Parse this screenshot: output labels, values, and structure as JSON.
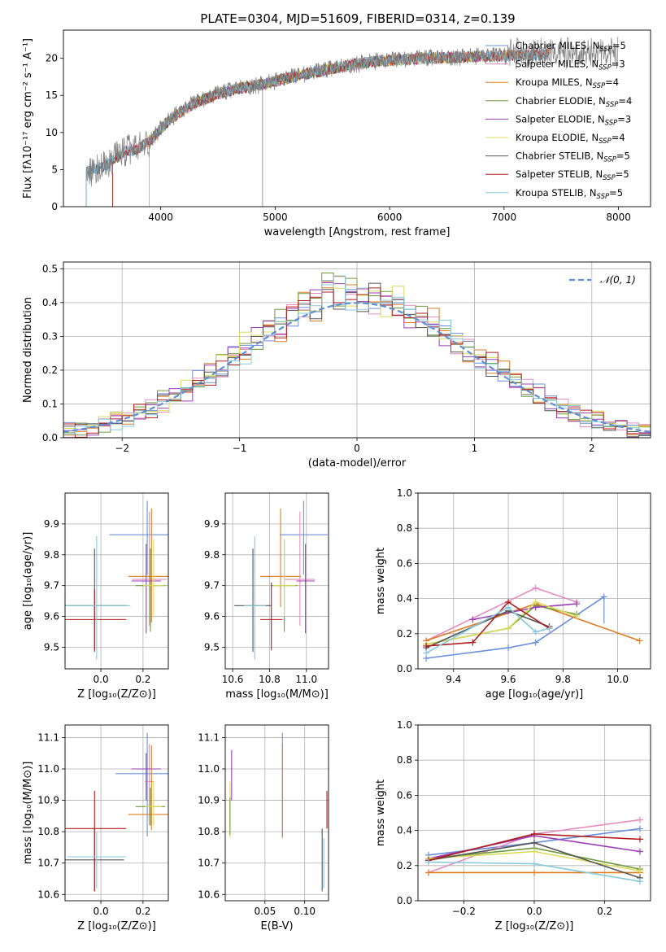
{
  "figure": {
    "title": "PLATE=0304, MJD=51609, FIBERID=0314, z=0.139"
  },
  "colors": {
    "chabrier_miles": "#6a8fdc",
    "salpeter_miles": "#e68bbf",
    "kroupa_miles": "#e07b22",
    "chabrier_elodie": "#6f9a3c",
    "salpeter_elodie": "#9b3fb5",
    "kroupa_elodie": "#d8dc5a",
    "chabrier_stelib": "#555555",
    "salpeter_stelib": "#b01e1e",
    "kroupa_stelib": "#86c9dc",
    "data_spectrum": "#808080",
    "normal_curve": "#5b8fd6"
  },
  "chart_data": [
    {
      "id": "spectrum",
      "type": "line",
      "title": "PLATE=0304, MJD=51609, FIBERID=0314, z=0.139",
      "xlabel": "wavelength [Angstrom, rest frame]",
      "ylabel": "Flux [fλ10⁻¹⁷ erg cm⁻² s⁻¹ A⁻¹]",
      "xlim": [
        3150,
        8280
      ],
      "ylim": [
        0,
        23.8
      ],
      "xticks": [
        "4000",
        "5000",
        "6000",
        "7000",
        "8000"
      ],
      "yticks": [
        "0",
        "5",
        "10",
        "15",
        "20"
      ],
      "legend_position": "top-right",
      "legend": [
        {
          "label": "Chabrier MILES, N",
          "sub": "SSP",
          "tail": "=5",
          "color_key": "chabrier_miles"
        },
        {
          "label": "Salpeter MILES, N",
          "sub": "SSP",
          "tail": "=3",
          "color_key": "salpeter_miles"
        },
        {
          "label": "Kroupa MILES, N",
          "sub": "SSP",
          "tail": "=4",
          "color_key": "kroupa_miles"
        },
        {
          "label": "Chabrier ELODIE, N",
          "sub": "SSP",
          "tail": "=4",
          "color_key": "chabrier_elodie"
        },
        {
          "label": "Salpeter ELODIE, N",
          "sub": "SSP",
          "tail": "=3",
          "color_key": "salpeter_elodie"
        },
        {
          "label": "Kroupa ELODIE, N",
          "sub": "SSP",
          "tail": "=4",
          "color_key": "kroupa_elodie"
        },
        {
          "label": "Chabrier STELIB, N",
          "sub": "SSP",
          "tail": "=5",
          "color_key": "chabrier_stelib"
        },
        {
          "label": "Salpeter STELIB, N",
          "sub": "SSP",
          "tail": "=5",
          "color_key": "salpeter_stelib"
        },
        {
          "label": "Kroupa STELIB, N",
          "sub": "SSP",
          "tail": "=5",
          "color_key": "kroupa_stelib"
        }
      ],
      "continuum": {
        "x": [
          3350,
          3500,
          3600,
          3700,
          3800,
          3900,
          4000,
          4100,
          4300,
          4500,
          4700,
          4900,
          5100,
          5300,
          5500,
          5700,
          5900,
          6100,
          6300,
          6500,
          6700,
          6900,
          7100,
          7300
        ],
        "y": [
          4.8,
          5.3,
          6.5,
          7.5,
          7.8,
          8.8,
          10.5,
          12.0,
          14.0,
          15.2,
          16.0,
          16.5,
          17.3,
          18.0,
          18.6,
          19.2,
          19.6,
          19.8,
          20.0,
          20.1,
          20.2,
          20.3,
          20.4,
          20.5
        ]
      },
      "model_ranges": [
        {
          "color_key": "chabrier_miles",
          "x": [
            3350,
            7400
          ]
        },
        {
          "color_key": "salpeter_miles",
          "x": [
            3580,
            7400
          ]
        },
        {
          "color_key": "kroupa_miles",
          "x": [
            3580,
            7400
          ]
        },
        {
          "color_key": "chabrier_elodie",
          "x": [
            3900,
            6800
          ]
        },
        {
          "color_key": "salpeter_elodie",
          "x": [
            3900,
            6800
          ]
        },
        {
          "color_key": "kroupa_elodie",
          "x": [
            3900,
            6800
          ]
        },
        {
          "color_key": "chabrier_stelib",
          "x": [
            3350,
            7400
          ]
        },
        {
          "color_key": "salpeter_stelib",
          "x": [
            3580,
            7400
          ]
        },
        {
          "color_key": "kroupa_stelib",
          "x": [
            3350,
            7400
          ]
        }
      ]
    },
    {
      "id": "residuals",
      "type": "line",
      "xlabel": "(data-model)/error",
      "ylabel": "Normed distribution",
      "xlim": [
        -2.5,
        2.5
      ],
      "ylim": [
        0,
        0.52
      ],
      "xticks": [
        "−2",
        "−1",
        "0",
        "1",
        "2"
      ],
      "yticks": [
        "0.0",
        "0.1",
        "0.2",
        "0.3",
        "0.4",
        "0.5"
      ],
      "grid": true,
      "legend_position": "top-right",
      "legend": [
        {
          "label": "𝒩(0, 1)",
          "color_key": "normal_curve"
        }
      ],
      "bin_width": 0.1,
      "bin_start": -2.5,
      "histogram_color_keys": [
        "chabrier_miles",
        "salpeter_miles",
        "kroupa_miles",
        "chabrier_elodie",
        "salpeter_elodie",
        "kroupa_elodie",
        "chabrier_stelib",
        "salpeter_stelib",
        "kroupa_stelib"
      ],
      "normal_curve": {
        "mean": 0,
        "sigma": 1
      }
    },
    {
      "id": "age_vs_Z",
      "type": "scatter",
      "xlabel": "Z [log₁₀(Z/Z⊙)]",
      "ylabel": "age  [log₁₀(age/yr)]",
      "xlim": [
        -0.17,
        0.32
      ],
      "ylim": [
        9.43,
        10.0
      ],
      "xticks": [
        "0.0",
        "0.2"
      ],
      "yticks": [
        "9.5",
        "9.6",
        "9.7",
        "9.8",
        "9.9"
      ],
      "grid": true,
      "points": [
        {
          "color_key": "chabrier_miles",
          "x": 0.22,
          "y": 9.865,
          "xerr": 0.18,
          "yerr_lo": 0.13,
          "yerr_hi": 0.11
        },
        {
          "color_key": "salpeter_miles",
          "x": 0.23,
          "y": 9.72,
          "xerr": 0.08,
          "yerr_lo": 0.15,
          "yerr_hi": 0.22
        },
        {
          "color_key": "kroupa_miles",
          "x": 0.24,
          "y": 9.73,
          "xerr": 0.11,
          "yerr_lo": 0.15,
          "yerr_hi": 0.22
        },
        {
          "color_key": "chabrier_elodie",
          "x": 0.235,
          "y": 9.7,
          "xerr": 0.07,
          "yerr_lo": 0.15,
          "yerr_hi": 0.12
        },
        {
          "color_key": "salpeter_elodie",
          "x": 0.215,
          "y": 9.715,
          "xerr": 0.07,
          "yerr_lo": 0.17,
          "yerr_hi": 0.12
        },
        {
          "color_key": "kroupa_elodie",
          "x": 0.25,
          "y": 9.7,
          "xerr": 0.05,
          "yerr_lo": 0.1,
          "yerr_hi": 0.15
        },
        {
          "color_key": "chabrier_stelib",
          "x": -0.03,
          "y": 9.635,
          "xerr": 0.15,
          "yerr_lo": 0.15,
          "yerr_hi": 0.185
        },
        {
          "color_key": "salpeter_stelib",
          "x": -0.03,
          "y": 9.59,
          "xerr": 0.15,
          "yerr_lo": 0.1,
          "yerr_hi": 0.1
        },
        {
          "color_key": "kroupa_stelib",
          "x": -0.02,
          "y": 9.635,
          "xerr": 0.16,
          "yerr_lo": 0.175,
          "yerr_hi": 0.225
        }
      ]
    },
    {
      "id": "age_vs_mass",
      "type": "scatter",
      "xlabel": "mass [log₁₀(M/M⊙)]",
      "xlim": [
        10.56,
        11.12
      ],
      "ylim": [
        9.43,
        10.0
      ],
      "xticks": [
        "10.6",
        "10.8",
        "11.0"
      ],
      "yticks": [
        "9.5",
        "9.6",
        "9.7",
        "9.8",
        "9.9"
      ],
      "grid": true,
      "points": [
        {
          "color_key": "chabrier_miles",
          "x": 10.985,
          "y": 9.865,
          "xerr": 0.13,
          "yerr_lo": 0.13,
          "yerr_hi": 0.11
        },
        {
          "color_key": "salpeter_miles",
          "x": 10.965,
          "y": 9.72,
          "xerr": 0.08,
          "yerr_lo": 0.15,
          "yerr_hi": 0.22
        },
        {
          "color_key": "kroupa_miles",
          "x": 10.86,
          "y": 9.73,
          "xerr": 0.11,
          "yerr_lo": 0.1,
          "yerr_hi": 0.22
        },
        {
          "color_key": "chabrier_elodie",
          "x": 10.88,
          "y": 9.7,
          "xerr": 0.07,
          "yerr_lo": 0.15,
          "yerr_hi": 0.15
        },
        {
          "color_key": "salpeter_elodie",
          "x": 10.995,
          "y": 9.715,
          "xerr": 0.05,
          "yerr_lo": 0.17,
          "yerr_hi": 0.12
        },
        {
          "color_key": "kroupa_elodie",
          "x": 10.88,
          "y": 9.7,
          "xerr": 0.06,
          "yerr_lo": 0.1,
          "yerr_hi": 0.15
        },
        {
          "color_key": "chabrier_stelib",
          "x": 10.71,
          "y": 9.635,
          "xerr": 0.1,
          "yerr_lo": 0.15,
          "yerr_hi": 0.185
        },
        {
          "color_key": "salpeter_stelib",
          "x": 10.81,
          "y": 9.59,
          "xerr": 0.06,
          "yerr_lo": 0.1,
          "yerr_hi": 0.12
        },
        {
          "color_key": "kroupa_stelib",
          "x": 10.72,
          "y": 9.635,
          "xerr": 0.06,
          "yerr_lo": 0.175,
          "yerr_hi": 0.225
        }
      ]
    },
    {
      "id": "mass_weight_vs_age",
      "type": "line",
      "xlabel": "age  [log₁₀(age/yr)]",
      "ylabel": "mass weight",
      "xlim": [
        9.27,
        10.12
      ],
      "ylim": [
        0,
        1.0
      ],
      "xticks": [
        "9.4",
        "9.6",
        "9.8",
        "10.0"
      ],
      "yticks": [
        "0.0",
        "0.2",
        "0.4",
        "0.6",
        "0.8",
        "1.0"
      ],
      "grid": true,
      "series": [
        {
          "color_key": "chabrier_miles",
          "x": [
            9.3,
            9.6,
            9.7,
            9.95
          ],
          "y": [
            0.06,
            0.12,
            0.15,
            0.41
          ],
          "y_extra": [
            [
              9.95,
              0.26
            ]
          ]
        },
        {
          "color_key": "salpeter_miles",
          "x": [
            9.3,
            9.7,
            9.85
          ],
          "y": [
            0.16,
            0.46,
            0.38
          ]
        },
        {
          "color_key": "kroupa_miles",
          "x": [
            9.3,
            9.7,
            10.08
          ],
          "y": [
            0.16,
            0.37,
            0.16
          ]
        },
        {
          "color_key": "chabrier_elodie",
          "x": [
            9.3,
            9.6,
            9.7,
            9.85
          ],
          "y": [
            0.14,
            0.23,
            0.36,
            0.31
          ]
        },
        {
          "color_key": "salpeter_elodie",
          "x": [
            9.47,
            9.7,
            9.85
          ],
          "y": [
            0.28,
            0.35,
            0.37
          ]
        },
        {
          "color_key": "kroupa_elodie",
          "x": [
            9.3,
            9.6,
            9.7,
            9.85
          ],
          "y": [
            0.14,
            0.23,
            0.38,
            0.3
          ]
        },
        {
          "color_key": "chabrier_stelib",
          "x": [
            9.3,
            9.6,
            9.75
          ],
          "y": [
            0.12,
            0.33,
            0.24
          ]
        },
        {
          "color_key": "salpeter_stelib",
          "x": [
            9.3,
            9.47,
            9.6,
            9.75
          ],
          "y": [
            0.13,
            0.15,
            0.38,
            0.23
          ]
        },
        {
          "color_key": "kroupa_stelib",
          "x": [
            9.3,
            9.6,
            9.7,
            9.75
          ],
          "y": [
            0.09,
            0.35,
            0.21,
            0.23
          ]
        }
      ]
    },
    {
      "id": "mass_vs_Z",
      "type": "scatter",
      "xlabel": "Z [log₁₀(Z/Z⊙)]",
      "ylabel": "mass [log₁₀(M/M⊙)]",
      "xlim": [
        -0.17,
        0.32
      ],
      "ylim": [
        10.58,
        11.14
      ],
      "xticks": [
        "0.0",
        "0.2"
      ],
      "yticks": [
        "10.6",
        "10.7",
        "10.8",
        "10.9",
        "11.0",
        "11.1"
      ],
      "grid": true,
      "points": [
        {
          "color_key": "chabrier_miles",
          "x": 0.22,
          "y": 10.985,
          "xerr": 0.15,
          "yerr_lo": 0.2,
          "yerr_hi": 0.13
        },
        {
          "color_key": "salpeter_miles",
          "x": 0.23,
          "y": 10.96,
          "xerr": 0.02,
          "yerr_lo": 0.14,
          "yerr_hi": 0.12
        },
        {
          "color_key": "kroupa_miles",
          "x": 0.24,
          "y": 10.855,
          "xerr": 0.11,
          "yerr_lo": 0.05,
          "yerr_hi": 0.22
        },
        {
          "color_key": "chabrier_elodie",
          "x": 0.235,
          "y": 10.88,
          "xerr": 0.07,
          "yerr_lo": 0.06,
          "yerr_hi": 0.06
        },
        {
          "color_key": "salpeter_elodie",
          "x": 0.215,
          "y": 11.0,
          "xerr": 0.07,
          "yerr_lo": 0.1,
          "yerr_hi": 0.05
        },
        {
          "color_key": "kroupa_elodie",
          "x": 0.25,
          "y": 10.88,
          "xerr": 0.04,
          "yerr_lo": 0.06,
          "yerr_hi": 0.08
        },
        {
          "color_key": "chabrier_stelib",
          "x": -0.03,
          "y": 10.71,
          "xerr": 0.14,
          "yerr_lo": 0.1,
          "yerr_hi": 0.1
        },
        {
          "color_key": "salpeter_stelib",
          "x": -0.03,
          "y": 10.81,
          "xerr": 0.15,
          "yerr_lo": 0.2,
          "yerr_hi": 0.12
        },
        {
          "color_key": "kroupa_stelib",
          "x": -0.02,
          "y": 10.72,
          "xerr": 0.14,
          "yerr_lo": 0.1,
          "yerr_hi": 0.08
        }
      ]
    },
    {
      "id": "mass_vs_ebv",
      "type": "scatter",
      "xlabel": "E(B-V)",
      "xlim": [
        0.0,
        0.13
      ],
      "ylim": [
        10.58,
        11.14
      ],
      "xticks": [
        "0.05",
        "0.10"
      ],
      "yticks": [
        "10.6",
        "10.7",
        "10.8",
        "10.9",
        "11.0",
        "11.1"
      ],
      "grid": true,
      "points": [
        {
          "color_key": "chabrier_miles",
          "x": 0.072,
          "y": 10.985,
          "yerr_lo": 0.2,
          "yerr_hi": 0.13
        },
        {
          "color_key": "kroupa_miles",
          "x": 0.072,
          "y": 10.96,
          "yerr_lo": 0.18,
          "yerr_hi": 0.12
        },
        {
          "color_key": "salpeter_elodie",
          "x": 0.008,
          "y": 11.0,
          "yerr_lo": 0.1,
          "yerr_hi": 0.06
        },
        {
          "color_key": "kroupa_elodie",
          "x": 0.006,
          "y": 10.88,
          "yerr_lo": 0.1,
          "yerr_hi": 0.08
        },
        {
          "color_key": "chabrier_elodie",
          "x": 0.006,
          "y": 10.86,
          "yerr_lo": 0.07,
          "yerr_hi": 0.05
        },
        {
          "color_key": "chabrier_stelib",
          "x": 0.122,
          "y": 10.71,
          "yerr_lo": 0.1,
          "yerr_hi": 0.1
        },
        {
          "color_key": "salpeter_stelib",
          "x": 0.128,
          "y": 10.86,
          "yerr_lo": 0.05,
          "yerr_hi": 0.07
        },
        {
          "color_key": "kroupa_stelib",
          "x": 0.124,
          "y": 10.72,
          "yerr_lo": 0.1,
          "yerr_hi": 0.06
        }
      ]
    },
    {
      "id": "mass_weight_vs_Z",
      "type": "line",
      "xlabel": "Z [log₁₀(Z/Z⊙)]",
      "ylabel": "mass weight",
      "xlim": [
        -0.33,
        0.33
      ],
      "ylim": [
        0,
        1.0
      ],
      "xticks": [
        "−0.2",
        "0.0",
        "0.2"
      ],
      "yticks": [
        "0.0",
        "0.2",
        "0.4",
        "0.6",
        "0.8",
        "1.0"
      ],
      "grid": true,
      "series": [
        {
          "color_key": "chabrier_miles",
          "x": [
            -0.3,
            0.0,
            0.3
          ],
          "y": [
            0.26,
            0.33,
            0.41
          ]
        },
        {
          "color_key": "salpeter_miles",
          "x": [
            -0.3,
            0.0,
            0.3
          ],
          "y": [
            0.16,
            0.38,
            0.46
          ]
        },
        {
          "color_key": "kroupa_miles",
          "x": [
            -0.3,
            0.0,
            0.3
          ],
          "y": [
            0.16,
            0.16,
            0.16
          ]
        },
        {
          "color_key": "chabrier_elodie",
          "x": [
            -0.3,
            0.0,
            0.3
          ],
          "y": [
            0.24,
            0.3,
            0.18
          ]
        },
        {
          "color_key": "salpeter_elodie",
          "x": [
            -0.3,
            0.0,
            0.3
          ],
          "y": [
            0.24,
            0.37,
            0.28
          ]
        },
        {
          "color_key": "kroupa_elodie",
          "x": [
            -0.3,
            0.0,
            0.3
          ],
          "y": [
            0.24,
            0.28,
            0.17
          ]
        },
        {
          "color_key": "chabrier_stelib",
          "x": [
            -0.3,
            0.0,
            0.3
          ],
          "y": [
            0.23,
            0.33,
            0.13
          ]
        },
        {
          "color_key": "salpeter_stelib",
          "x": [
            -0.3,
            0.0,
            0.3
          ],
          "y": [
            0.23,
            0.38,
            0.35
          ]
        },
        {
          "color_key": "kroupa_stelib",
          "x": [
            -0.3,
            0.0,
            0.3
          ],
          "y": [
            0.22,
            0.21,
            0.11
          ]
        }
      ]
    }
  ]
}
